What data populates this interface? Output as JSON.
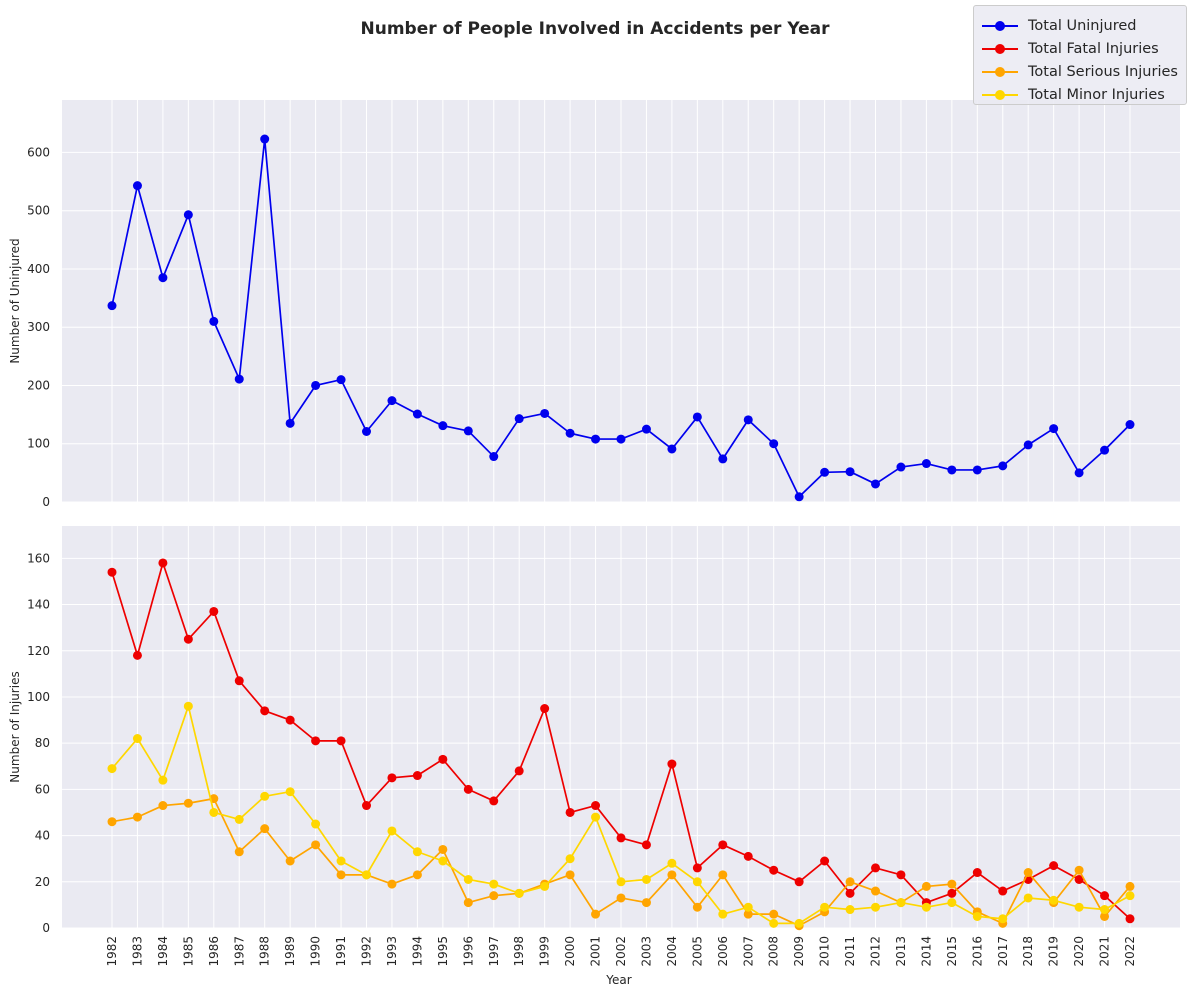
{
  "title": "Number of People Involved in Accidents per Year",
  "colors": {
    "background": "#eaeaf2",
    "grid": "#ffffff",
    "text": "#262626",
    "uninjured": "#0000ee",
    "fatal": "#ee0000",
    "serious": "#ffa500",
    "minor": "#ffd700"
  },
  "legend": {
    "position": "top-right",
    "items": [
      {
        "label": "Total Uninjured",
        "color": "#0000ee"
      },
      {
        "label": "Total Fatal Injuries",
        "color": "#ee0000"
      },
      {
        "label": "Total Serious Injuries",
        "color": "#ffa500"
      },
      {
        "label": "Total Minor Injuries",
        "color": "#ffd700"
      }
    ]
  },
  "chart_data": [
    {
      "type": "line",
      "ylabel": "Number of Uninjured",
      "xlabel": "",
      "ylim": [
        0,
        690
      ],
      "yticks": [
        0,
        100,
        200,
        300,
        400,
        500,
        600
      ],
      "grid": true,
      "x": [
        1982,
        1983,
        1984,
        1985,
        1986,
        1987,
        1988,
        1989,
        1990,
        1991,
        1992,
        1993,
        1994,
        1995,
        1996,
        1997,
        1998,
        1999,
        2000,
        2001,
        2002,
        2003,
        2004,
        2005,
        2006,
        2007,
        2008,
        2009,
        2010,
        2011,
        2012,
        2013,
        2014,
        2015,
        2016,
        2017,
        2018,
        2019,
        2020,
        2021,
        2022
      ],
      "series": [
        {
          "name": "Total Uninjured",
          "color": "#0000ee",
          "values": [
            337,
            543,
            385,
            493,
            310,
            211,
            623,
            135,
            200,
            210,
            121,
            174,
            151,
            131,
            122,
            78,
            143,
            152,
            118,
            108,
            108,
            125,
            91,
            146,
            74,
            141,
            100,
            9,
            51,
            52,
            31,
            60,
            66,
            55,
            55,
            62,
            98,
            126,
            50,
            89,
            133
          ]
        }
      ]
    },
    {
      "type": "line",
      "ylabel": "Number of Injuries",
      "xlabel": "Year",
      "ylim": [
        0,
        174
      ],
      "yticks": [
        0,
        20,
        40,
        60,
        80,
        100,
        120,
        140,
        160
      ],
      "grid": true,
      "x": [
        1982,
        1983,
        1984,
        1985,
        1986,
        1987,
        1988,
        1989,
        1990,
        1991,
        1992,
        1993,
        1994,
        1995,
        1996,
        1997,
        1998,
        1999,
        2000,
        2001,
        2002,
        2003,
        2004,
        2005,
        2006,
        2007,
        2008,
        2009,
        2010,
        2011,
        2012,
        2013,
        2014,
        2015,
        2016,
        2017,
        2018,
        2019,
        2020,
        2021,
        2022
      ],
      "series": [
        {
          "name": "Total Fatal Injuries",
          "color": "#ee0000",
          "values": [
            154,
            118,
            158,
            125,
            137,
            107,
            94,
            90,
            81,
            81,
            53,
            65,
            66,
            73,
            60,
            55,
            68,
            95,
            50,
            53,
            39,
            36,
            71,
            26,
            36,
            31,
            25,
            20,
            29,
            15,
            26,
            23,
            11,
            15,
            24,
            16,
            21,
            27,
            21,
            14,
            4
          ]
        },
        {
          "name": "Total Serious Injuries",
          "color": "#ffa500",
          "values": [
            46,
            48,
            53,
            54,
            56,
            33,
            43,
            29,
            36,
            23,
            23,
            19,
            23,
            34,
            11,
            14,
            15,
            19,
            23,
            6,
            13,
            11,
            23,
            9,
            23,
            6,
            6,
            1,
            7,
            20,
            16,
            11,
            18,
            19,
            7,
            2,
            24,
            11,
            25,
            5,
            18
          ]
        },
        {
          "name": "Total Minor Injuries",
          "color": "#ffd700",
          "values": [
            69,
            82,
            64,
            96,
            50,
            47,
            57,
            59,
            45,
            29,
            23,
            42,
            33,
            29,
            21,
            19,
            15,
            18,
            30,
            48,
            20,
            21,
            28,
            20,
            6,
            9,
            2,
            2,
            9,
            8,
            9,
            11,
            9,
            11,
            5,
            4,
            13,
            12,
            9,
            8,
            14
          ]
        }
      ]
    }
  ]
}
